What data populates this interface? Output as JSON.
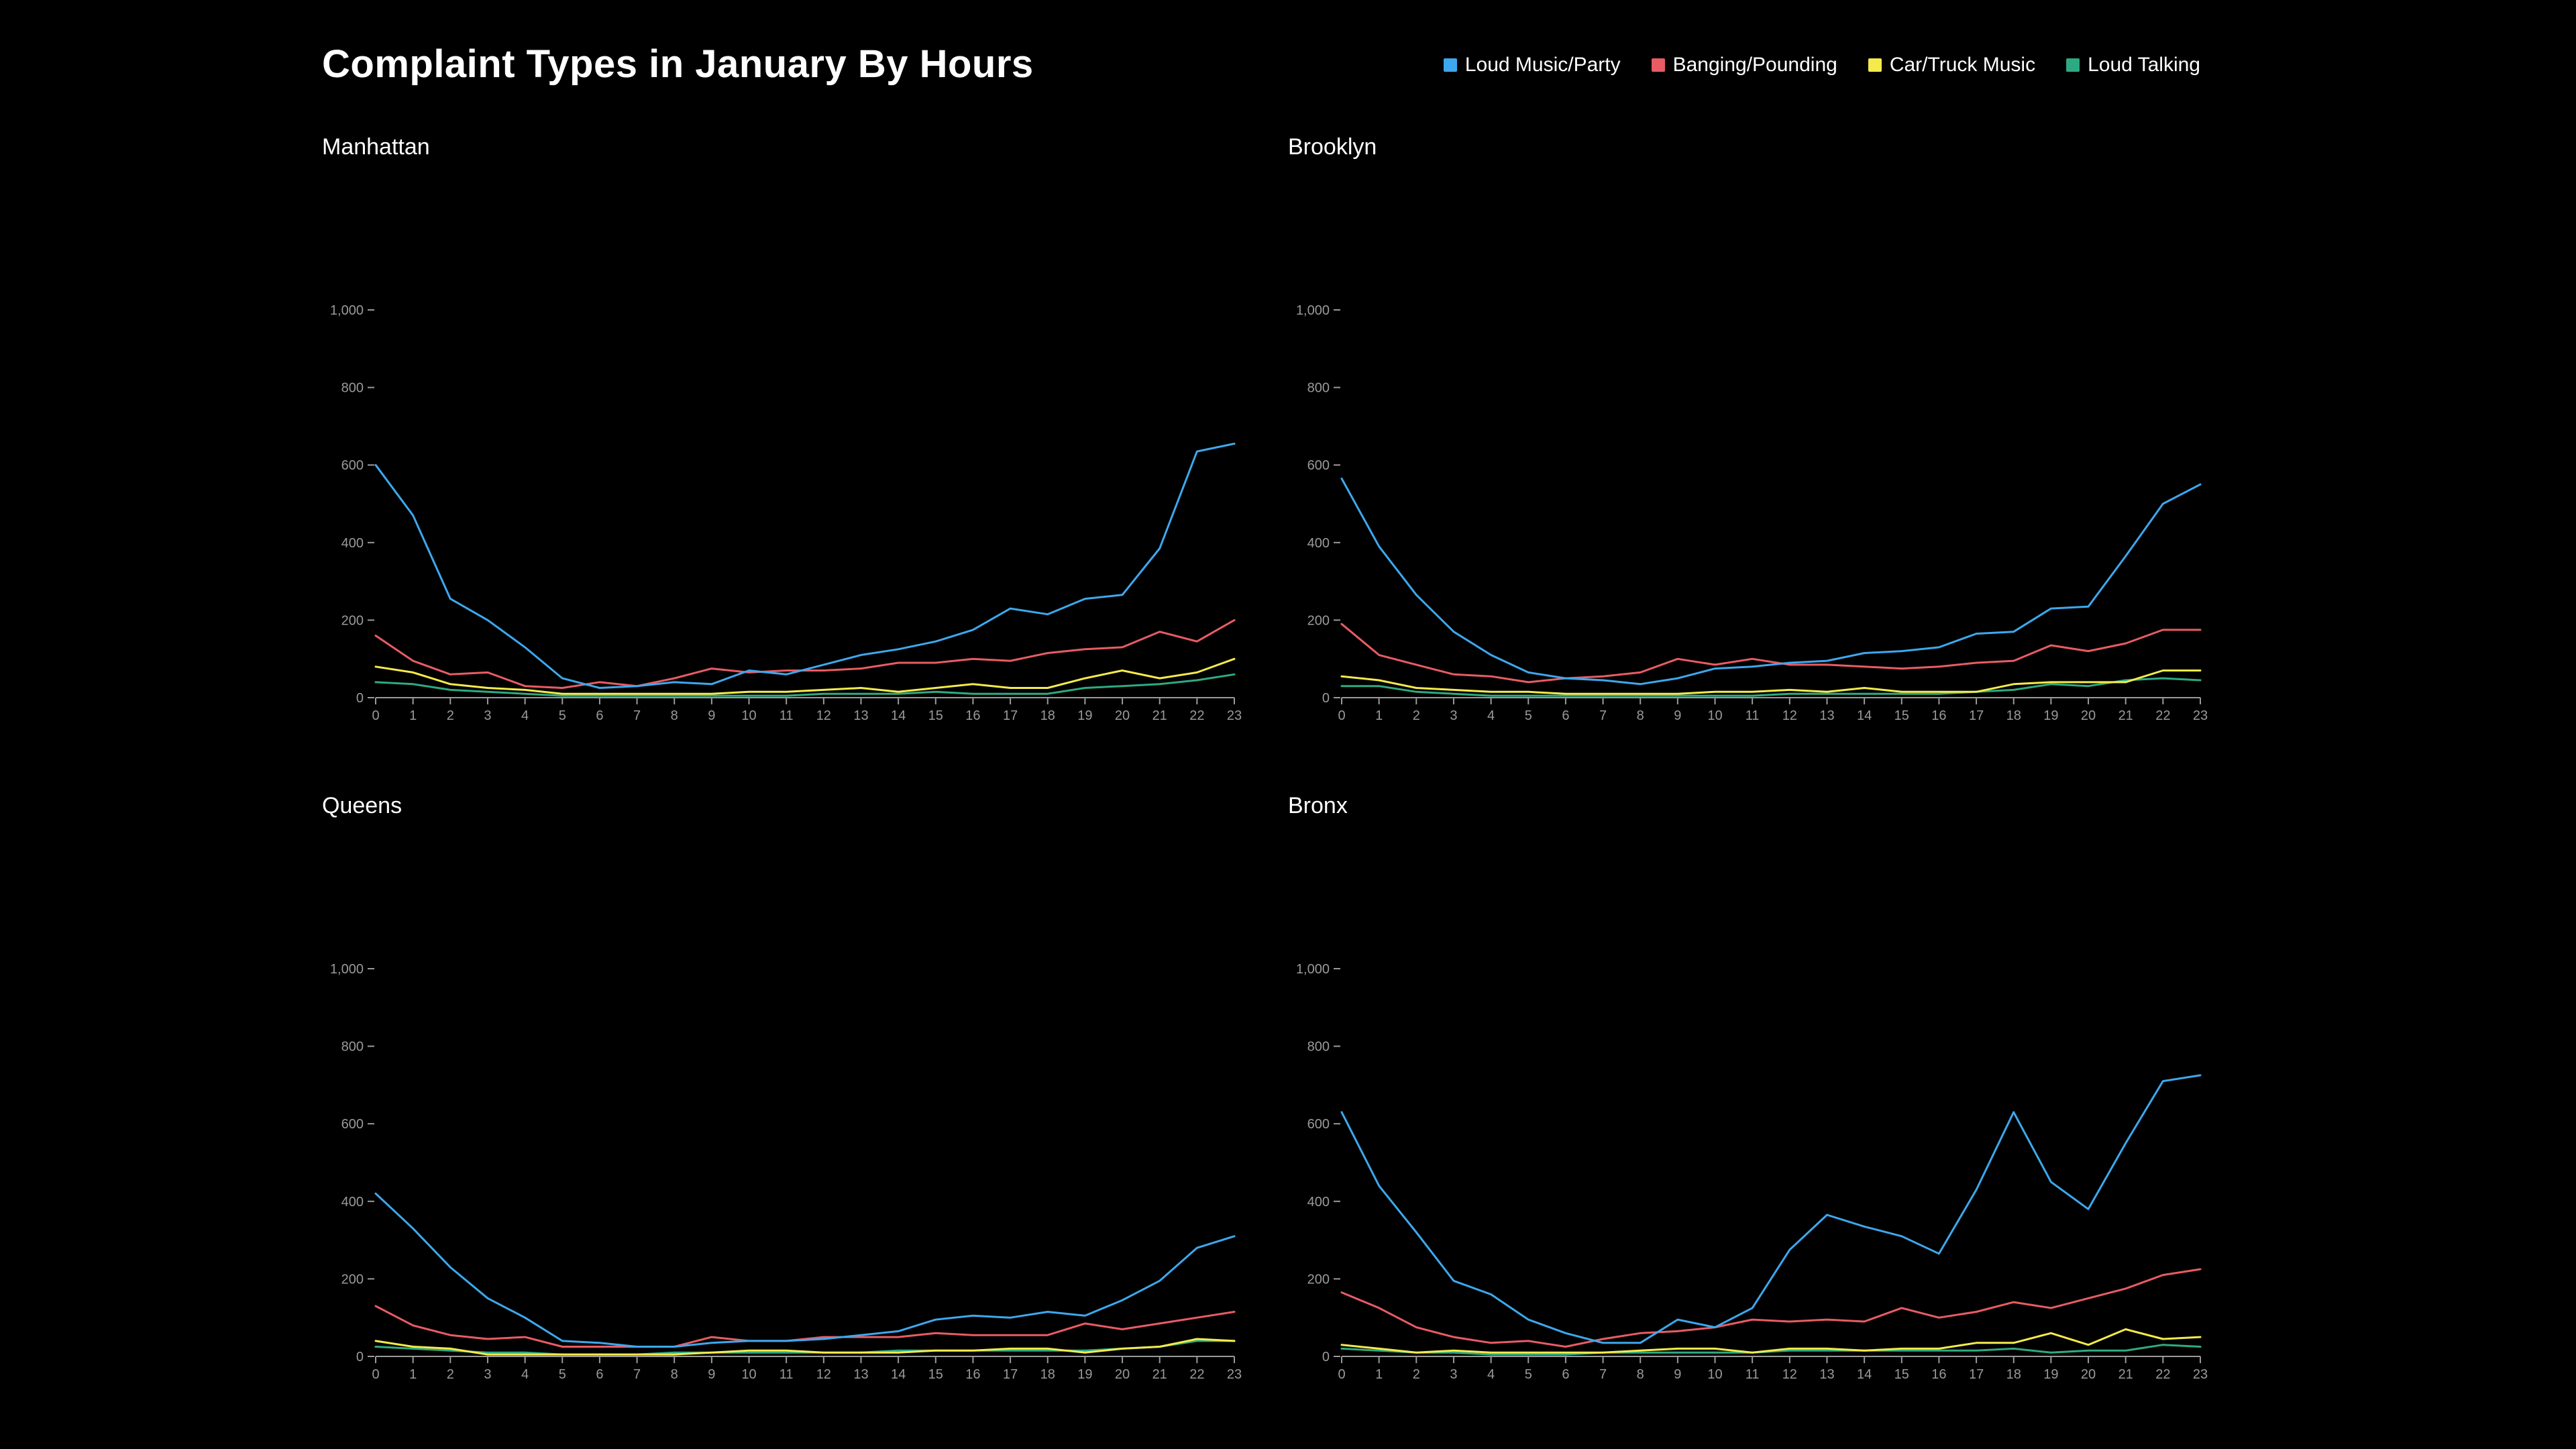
{
  "title": "Complaint Types in January By Hours",
  "colors": {
    "loud_music": "#3da8ee",
    "banging": "#e85c64",
    "car_truck": "#f5ea4c",
    "loud_talking": "#2eaa82"
  },
  "legend": [
    {
      "label": "Loud Music/Party",
      "color": "#3da8ee"
    },
    {
      "label": "Banging/Pounding",
      "color": "#e85c64"
    },
    {
      "label": "Car/Truck Music",
      "color": "#f5ea4c"
    },
    {
      "label": "Loud Talking",
      "color": "#2eaa82"
    }
  ],
  "chart_data": [
    {
      "type": "line",
      "title": "Manhattan",
      "x": [
        0,
        1,
        2,
        3,
        4,
        5,
        6,
        7,
        8,
        9,
        10,
        11,
        12,
        13,
        14,
        15,
        16,
        17,
        18,
        19,
        20,
        21,
        22,
        23
      ],
      "ylim": [
        0,
        1000
      ],
      "yticks": [
        0,
        200,
        400,
        600,
        800,
        1000
      ],
      "ytick_labels": [
        "0",
        "200",
        "400",
        "600",
        "800",
        "1,000"
      ],
      "series": [
        {
          "name": "Loud Music/Party",
          "color": "#3da8ee",
          "values": [
            600,
            470,
            255,
            200,
            130,
            50,
            25,
            30,
            40,
            35,
            70,
            60,
            85,
            110,
            125,
            145,
            175,
            230,
            215,
            255,
            265,
            385,
            635,
            655
          ]
        },
        {
          "name": "Banging/Pounding",
          "color": "#e85c64",
          "values": [
            160,
            95,
            60,
            65,
            30,
            25,
            40,
            30,
            50,
            75,
            65,
            70,
            70,
            75,
            90,
            90,
            100,
            95,
            115,
            125,
            130,
            170,
            145,
            200
          ]
        },
        {
          "name": "Car/Truck Music",
          "color": "#f5ea4c",
          "values": [
            80,
            65,
            35,
            25,
            20,
            10,
            10,
            10,
            10,
            10,
            15,
            15,
            20,
            25,
            15,
            25,
            35,
            25,
            25,
            50,
            70,
            50,
            65,
            100
          ]
        },
        {
          "name": "Loud Talking",
          "color": "#2eaa82",
          "values": [
            40,
            35,
            20,
            15,
            10,
            5,
            5,
            5,
            5,
            5,
            5,
            5,
            10,
            10,
            10,
            15,
            10,
            10,
            10,
            25,
            30,
            35,
            45,
            60
          ]
        }
      ]
    },
    {
      "type": "line",
      "title": "Brooklyn",
      "x": [
        0,
        1,
        2,
        3,
        4,
        5,
        6,
        7,
        8,
        9,
        10,
        11,
        12,
        13,
        14,
        15,
        16,
        17,
        18,
        19,
        20,
        21,
        22,
        23
      ],
      "ylim": [
        0,
        1000
      ],
      "yticks": [
        0,
        200,
        400,
        600,
        800,
        1000
      ],
      "ytick_labels": [
        "0",
        "200",
        "400",
        "600",
        "800",
        "1,000"
      ],
      "series": [
        {
          "name": "Loud Music/Party",
          "color": "#3da8ee",
          "values": [
            565,
            390,
            265,
            170,
            110,
            65,
            50,
            45,
            35,
            50,
            75,
            80,
            90,
            95,
            115,
            120,
            130,
            165,
            170,
            230,
            235,
            365,
            500,
            550
          ]
        },
        {
          "name": "Banging/Pounding",
          "color": "#e85c64",
          "values": [
            190,
            110,
            85,
            60,
            55,
            40,
            50,
            55,
            65,
            100,
            85,
            100,
            85,
            85,
            80,
            75,
            80,
            90,
            95,
            135,
            120,
            140,
            175,
            175
          ]
        },
        {
          "name": "Car/Truck Music",
          "color": "#f5ea4c",
          "values": [
            55,
            45,
            25,
            20,
            15,
            15,
            10,
            10,
            10,
            10,
            15,
            15,
            20,
            15,
            25,
            15,
            15,
            15,
            35,
            40,
            40,
            40,
            70,
            70
          ]
        },
        {
          "name": "Loud Talking",
          "color": "#2eaa82",
          "values": [
            30,
            30,
            15,
            10,
            5,
            5,
            5,
            5,
            5,
            5,
            5,
            5,
            10,
            10,
            10,
            10,
            10,
            15,
            20,
            35,
            30,
            45,
            50,
            45
          ]
        }
      ]
    },
    {
      "type": "line",
      "title": "Queens",
      "x": [
        0,
        1,
        2,
        3,
        4,
        5,
        6,
        7,
        8,
        9,
        10,
        11,
        12,
        13,
        14,
        15,
        16,
        17,
        18,
        19,
        20,
        21,
        22,
        23
      ],
      "ylim": [
        0,
        1000
      ],
      "yticks": [
        0,
        200,
        400,
        600,
        800,
        1000
      ],
      "ytick_labels": [
        "0",
        "200",
        "400",
        "600",
        "800",
        "1,000"
      ],
      "series": [
        {
          "name": "Loud Music/Party",
          "color": "#3da8ee",
          "values": [
            420,
            330,
            230,
            150,
            100,
            40,
            35,
            25,
            25,
            35,
            40,
            40,
            45,
            55,
            65,
            95,
            105,
            100,
            115,
            105,
            145,
            195,
            280,
            310
          ]
        },
        {
          "name": "Banging/Pounding",
          "color": "#e85c64",
          "values": [
            130,
            80,
            55,
            45,
            50,
            25,
            25,
            25,
            25,
            50,
            40,
            40,
            50,
            50,
            50,
            60,
            55,
            55,
            55,
            85,
            70,
            85,
            100,
            115
          ]
        },
        {
          "name": "Car/Truck Music",
          "color": "#f5ea4c",
          "values": [
            40,
            25,
            20,
            5,
            5,
            5,
            5,
            5,
            5,
            10,
            15,
            15,
            10,
            10,
            10,
            15,
            15,
            20,
            20,
            10,
            20,
            25,
            45,
            40
          ]
        },
        {
          "name": "Loud Talking",
          "color": "#2eaa82",
          "values": [
            25,
            20,
            15,
            10,
            10,
            5,
            5,
            5,
            10,
            10,
            10,
            10,
            10,
            10,
            15,
            15,
            15,
            15,
            15,
            15,
            20,
            25,
            40,
            40
          ]
        }
      ]
    },
    {
      "type": "line",
      "title": "Bronx",
      "x": [
        0,
        1,
        2,
        3,
        4,
        5,
        6,
        7,
        8,
        9,
        10,
        11,
        12,
        13,
        14,
        15,
        16,
        17,
        18,
        19,
        20,
        21,
        22,
        23
      ],
      "ylim": [
        0,
        1000
      ],
      "yticks": [
        0,
        200,
        400,
        600,
        800,
        1000
      ],
      "ytick_labels": [
        "0",
        "200",
        "400",
        "600",
        "800",
        "1,000"
      ],
      "series": [
        {
          "name": "Loud Music/Party",
          "color": "#3da8ee",
          "values": [
            630,
            440,
            320,
            195,
            160,
            95,
            60,
            35,
            35,
            95,
            75,
            125,
            275,
            365,
            335,
            310,
            265,
            430,
            630,
            450,
            380,
            550,
            710,
            725
          ]
        },
        {
          "name": "Banging/Pounding",
          "color": "#e85c64",
          "values": [
            165,
            125,
            75,
            50,
            35,
            40,
            25,
            45,
            60,
            65,
            75,
            95,
            90,
            95,
            90,
            125,
            100,
            115,
            140,
            125,
            150,
            175,
            210,
            225
          ]
        },
        {
          "name": "Car/Truck Music",
          "color": "#f5ea4c",
          "values": [
            30,
            20,
            10,
            15,
            10,
            10,
            10,
            10,
            15,
            20,
            20,
            10,
            20,
            20,
            15,
            20,
            20,
            35,
            35,
            60,
            30,
            70,
            45,
            50
          ]
        },
        {
          "name": "Loud Talking",
          "color": "#2eaa82",
          "values": [
            20,
            15,
            10,
            10,
            5,
            5,
            5,
            10,
            10,
            10,
            10,
            10,
            15,
            15,
            15,
            15,
            15,
            15,
            20,
            10,
            15,
            15,
            30,
            25
          ]
        }
      ]
    }
  ]
}
